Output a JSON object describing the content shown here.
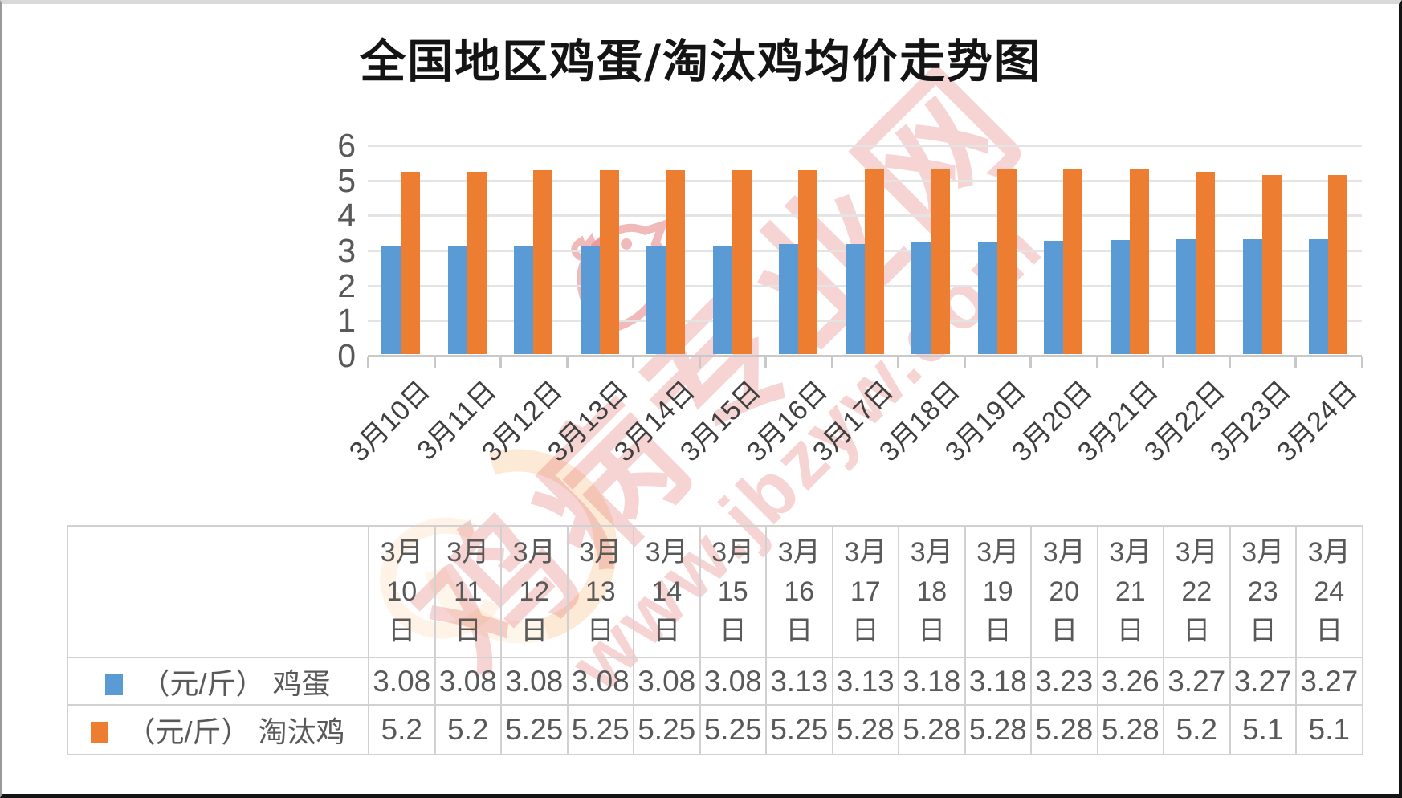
{
  "page": {
    "title": "全国地区鸡蛋/淘汰鸡均价走势图"
  },
  "watermark": {
    "brand": "鸡病专业网",
    "url": "www.jbzyw.com",
    "color": "#dd5757"
  },
  "chart_data": {
    "type": "bar",
    "title": "全国地区鸡蛋/淘汰鸡均价走势图",
    "categories": [
      "3月10日",
      "3月11日",
      "3月12日",
      "3月13日",
      "3月14日",
      "3月15日",
      "3月16日",
      "3月17日",
      "3月18日",
      "3月19日",
      "3月20日",
      "3月21日",
      "3月22日",
      "3月23日",
      "3月24日"
    ],
    "series": [
      {
        "name": "（元/斤） 鸡蛋",
        "color": "#5B9BD5",
        "values": [
          3.08,
          3.08,
          3.08,
          3.08,
          3.08,
          3.08,
          3.13,
          3.13,
          3.18,
          3.18,
          3.23,
          3.26,
          3.27,
          3.27,
          3.27
        ]
      },
      {
        "name": "（元/斤） 淘汰鸡",
        "color": "#ED7D31",
        "values": [
          5.2,
          5.2,
          5.25,
          5.25,
          5.25,
          5.25,
          5.25,
          5.28,
          5.28,
          5.28,
          5.28,
          5.28,
          5.2,
          5.1,
          5.1
        ]
      }
    ],
    "xlabel": "",
    "ylabel": "",
    "ylim": [
      0,
      6
    ],
    "yticks": [
      0,
      1,
      2,
      3,
      4,
      5,
      6
    ],
    "grid": true,
    "legend_position": "table-rows-left",
    "style": {
      "gridline_color": "#e4e4e4",
      "axis_color": "#c9c9c9",
      "tick_label_color": "#595959",
      "table_border_color": "#d2d0d0"
    }
  }
}
